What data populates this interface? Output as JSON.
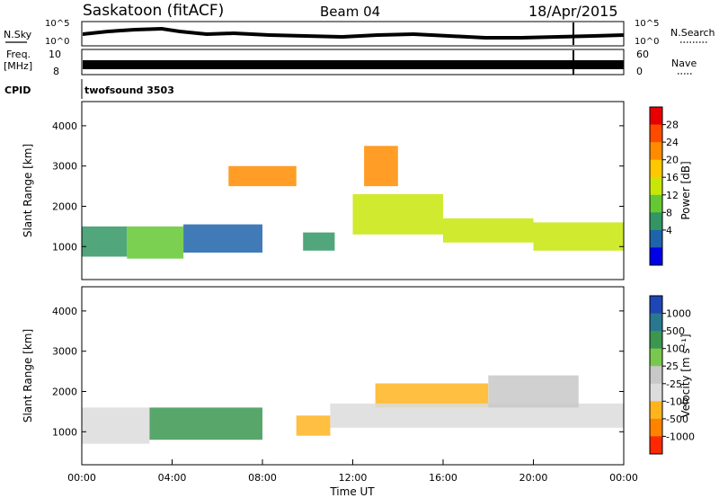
{
  "header": {
    "title": "Saskatoon (fitACF)",
    "beam": "Beam 04",
    "date": "18/Apr/2015"
  },
  "strips": {
    "nsky_label": "N.Sky",
    "nsky_ticks": [
      "10^5",
      "10^0"
    ],
    "nsearch_label": "N.Search",
    "nsearch_ticks": [
      "10^5",
      "10^0"
    ],
    "freq_label_1": "Freq.",
    "freq_label_2": "[MHz]",
    "freq_ticks": [
      "10",
      "8"
    ],
    "nave_label": "Nave",
    "nave_ticks": [
      "60",
      "0"
    ],
    "cpid_label": "CPID",
    "cpid_value": "twofsound 3503"
  },
  "chart_data": [
    {
      "type": "heatmap",
      "name": "power",
      "ylabel": "Slant Range [km]",
      "yticks": [
        1000,
        2000,
        3000,
        4000
      ],
      "ylim": [
        180,
        4600
      ],
      "xlim": [
        0,
        24
      ],
      "colorbar": {
        "label": "Power [dB]",
        "ticks": [
          "28",
          "24",
          "20",
          "16",
          "12",
          "8",
          "4"
        ],
        "colors": [
          "#e80000",
          "#ff4a00",
          "#ff8c00",
          "#ffc800",
          "#c8e60a",
          "#64c832",
          "#329664",
          "#1e64aa",
          "#0000e6"
        ]
      },
      "bands": [
        {
          "x0": 0.0,
          "x1": 2.0,
          "r0": 750,
          "r1": 1500,
          "level": 6
        },
        {
          "x0": 2.0,
          "x1": 4.5,
          "r0": 700,
          "r1": 1500,
          "level": 5
        },
        {
          "x0": 4.5,
          "x1": 8.0,
          "r0": 850,
          "r1": 1550,
          "level": 7
        },
        {
          "x0": 9.8,
          "x1": 11.2,
          "r0": 900,
          "r1": 1350,
          "level": 6
        },
        {
          "x0": 12.0,
          "x1": 16.0,
          "r0": 1300,
          "r1": 2300,
          "level": 4
        },
        {
          "x0": 16.0,
          "x1": 20.0,
          "r0": 1100,
          "r1": 1700,
          "level": 4
        },
        {
          "x0": 20.0,
          "x1": 24.0,
          "r0": 900,
          "r1": 1600,
          "level": 4
        },
        {
          "x0": 6.5,
          "x1": 9.5,
          "r0": 2500,
          "r1": 3000,
          "level": 2
        },
        {
          "x0": 12.5,
          "x1": 14.0,
          "r0": 2500,
          "r1": 3500,
          "level": 2
        }
      ]
    },
    {
      "type": "heatmap",
      "name": "velocity",
      "ylabel": "Slant Range [km]",
      "xlabel": "Time UT",
      "xticks": [
        "00:00",
        "04:00",
        "08:00",
        "12:00",
        "16:00",
        "20:00",
        "00:00"
      ],
      "yticks": [
        1000,
        2000,
        3000,
        4000
      ],
      "ylim": [
        180,
        4600
      ],
      "xlim": [
        0,
        24
      ],
      "colorbar": {
        "label": "Velocity [m s⁻¹]",
        "ticks": [
          "1000",
          "500",
          "100",
          "25",
          "-25",
          "-100",
          "-500",
          "-1000"
        ],
        "colors": [
          "#1e46b4",
          "#287890",
          "#3c9650",
          "#78c850",
          "#c8c8c8",
          "#dcdcdc",
          "#ffb41e",
          "#ff8200",
          "#ff2800"
        ]
      },
      "bands": [
        {
          "x0": 0.0,
          "x1": 3.0,
          "r0": 700,
          "r1": 1600,
          "level": 5
        },
        {
          "x0": 3.0,
          "x1": 8.0,
          "r0": 800,
          "r1": 1600,
          "level": 2
        },
        {
          "x0": 9.5,
          "x1": 11.0,
          "r0": 900,
          "r1": 1400,
          "level": 6
        },
        {
          "x0": 13.0,
          "x1": 18.0,
          "r0": 1600,
          "r1": 2200,
          "level": 6
        },
        {
          "x0": 11.0,
          "x1": 24.0,
          "r0": 1100,
          "r1": 1700,
          "level": 5
        },
        {
          "x0": 18.0,
          "x1": 22.0,
          "r0": 1600,
          "r1": 2400,
          "level": 4
        }
      ]
    }
  ]
}
